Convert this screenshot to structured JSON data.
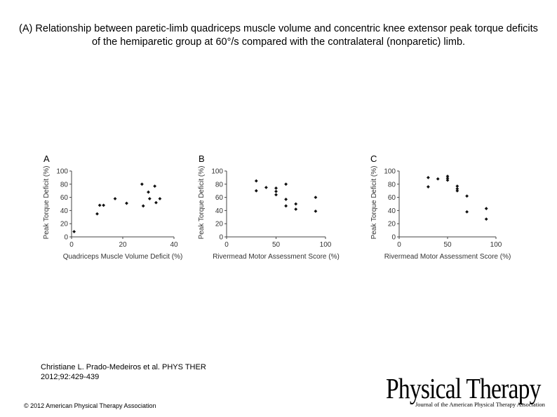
{
  "title": "(A) Relationship between paretic-limb quadriceps muscle volume and concentric knee extensor peak torque deficits of the hemiparetic group at 60°/s compared with the contralateral (nonparetic) limb.",
  "citation": {
    "line1": "Christiane L. Prado-Medeiros et al. PHYS THER",
    "line2": "2012;92:429-439"
  },
  "copyright": "© 2012 American Physical Therapy Association",
  "logo": {
    "main": "Physical Therapy",
    "sub": "Journal of the American Physical Therapy Association"
  },
  "chart_data": [
    {
      "type": "scatter",
      "panel": "A",
      "xlabel": "Quadriceps Muscle Volume Deficit (%)",
      "ylabel": "Peak Torque Deficit (%)",
      "xlim": [
        0,
        40
      ],
      "ylim": [
        0,
        100
      ],
      "xticks": [
        "0",
        "20",
        "40"
      ],
      "yticks": [
        "0",
        "20",
        "40",
        "60",
        "80",
        "100"
      ],
      "points": [
        [
          1,
          8
        ],
        [
          10,
          35
        ],
        [
          11,
          48
        ],
        [
          12.5,
          48
        ],
        [
          17,
          58
        ],
        [
          21.5,
          51
        ],
        [
          27.5,
          80
        ],
        [
          28,
          47
        ],
        [
          30,
          68
        ],
        [
          30.5,
          58
        ],
        [
          32.5,
          77
        ],
        [
          33,
          52
        ],
        [
          34.5,
          58
        ]
      ]
    },
    {
      "type": "scatter",
      "panel": "B",
      "xlabel": "Rivermead Motor Assessment Score (%)",
      "ylabel": "Peak Torque Deficit (%)",
      "xlim": [
        0,
        100
      ],
      "ylim": [
        0,
        100
      ],
      "xticks": [
        "0",
        "50",
        "100"
      ],
      "yticks": [
        "0",
        "20",
        "40",
        "60",
        "80",
        "100"
      ],
      "points": [
        [
          30,
          85
        ],
        [
          30,
          70
        ],
        [
          40,
          75
        ],
        [
          50,
          74
        ],
        [
          50,
          69
        ],
        [
          50,
          64
        ],
        [
          60,
          80
        ],
        [
          60,
          57
        ],
        [
          60,
          47
        ],
        [
          70,
          50
        ],
        [
          70,
          42
        ],
        [
          90,
          60
        ],
        [
          90,
          39
        ]
      ]
    },
    {
      "type": "scatter",
      "panel": "C",
      "xlabel": "Rivermead Motor Assessment Score (%)",
      "ylabel": "Peak Torque Deficit (%)",
      "xlim": [
        0,
        100
      ],
      "ylim": [
        0,
        100
      ],
      "xticks": [
        "0",
        "50",
        "100"
      ],
      "yticks": [
        "0",
        "20",
        "40",
        "60",
        "80",
        "100"
      ],
      "points": [
        [
          30,
          90
        ],
        [
          30,
          76
        ],
        [
          40,
          88
        ],
        [
          50,
          92
        ],
        [
          50,
          89
        ],
        [
          50,
          86
        ],
        [
          60,
          77
        ],
        [
          60,
          73
        ],
        [
          60,
          70
        ],
        [
          70,
          62
        ],
        [
          70,
          38
        ],
        [
          90,
          43
        ],
        [
          90,
          27
        ]
      ]
    }
  ]
}
